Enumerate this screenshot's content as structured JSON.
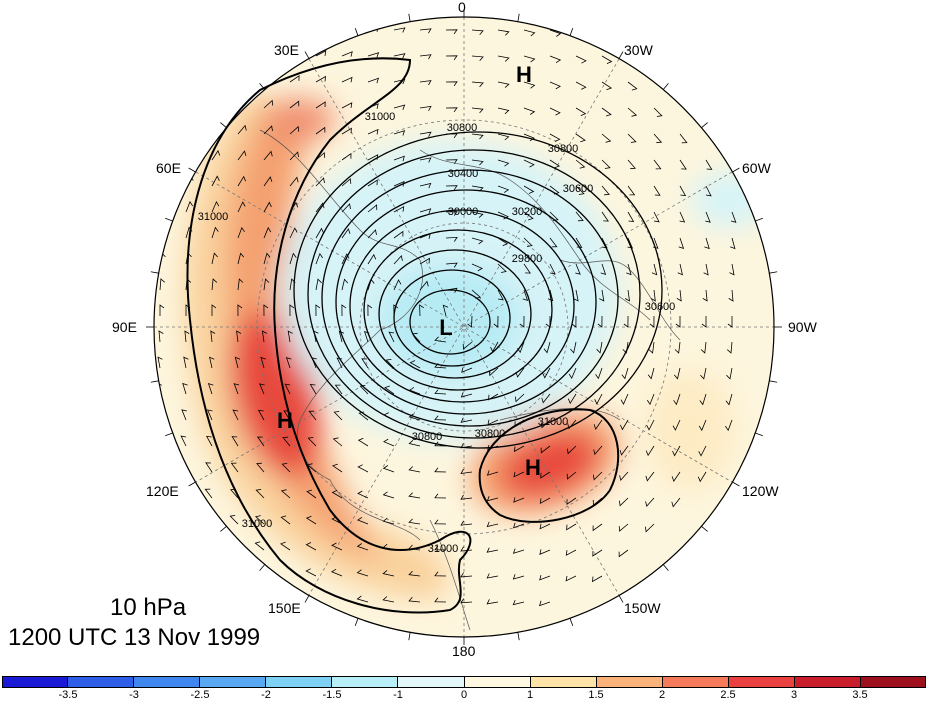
{
  "projection": "north-polar-stereographic",
  "field": {
    "level_label": "10 hPa",
    "time_label": "1200 UTC 13 Nov 1999",
    "shading": "anomaly",
    "contour_interval_gpm": 200,
    "contour_labels": [
      "31000",
      "30800",
      "30600",
      "30400",
      "30200",
      "30000",
      "29800",
      "31000",
      "31000",
      "31000",
      "30800",
      "31000",
      "31000",
      "30600"
    ]
  },
  "longitude_labels": [
    "0",
    "30W",
    "60W",
    "90W",
    "120W",
    "150W",
    "180",
    "150E",
    "120E",
    "90E",
    "60E",
    "30E"
  ],
  "pressure_centers": [
    {
      "type": "H",
      "label": "H",
      "note": "near 20W"
    },
    {
      "type": "L",
      "label": "L",
      "note": "polar low"
    },
    {
      "type": "H",
      "label": "H",
      "note": "near 110E"
    },
    {
      "type": "H",
      "label": "H",
      "note": "near 150W"
    }
  ],
  "colorbar": {
    "colors": [
      "#1a1ad6",
      "#2e5ee8",
      "#3f86ee",
      "#58a8f2",
      "#7fd0f5",
      "#b7eef7",
      "#e3f7f8",
      "#fff8e0",
      "#fde3a8",
      "#f9b27a",
      "#f47a5a",
      "#e8413f",
      "#c81e2c",
      "#9e0f1e"
    ],
    "tick_labels": [
      "-3.5",
      "-3",
      "-2.5",
      "-2",
      "-1.5",
      "-1",
      "0",
      "1",
      "1.5",
      "2",
      "2.5",
      "3",
      "3.5"
    ]
  }
}
